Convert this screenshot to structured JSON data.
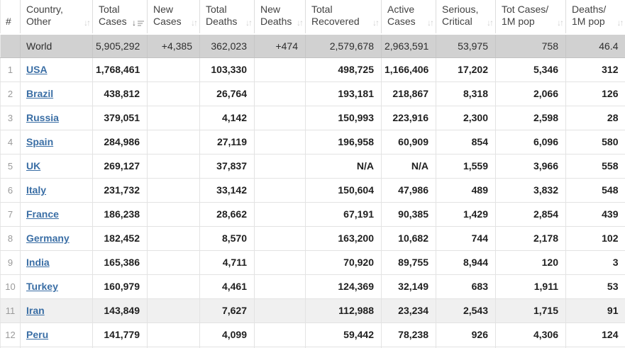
{
  "table": {
    "columns": [
      {
        "id": "rank",
        "line1": "#",
        "line2": "",
        "sortable": false,
        "sort": "none"
      },
      {
        "id": "country",
        "line1": "Country,",
        "line2": "Other",
        "sortable": true,
        "sort": "none"
      },
      {
        "id": "total_cases",
        "line1": "Total",
        "line2": "Cases",
        "sortable": true,
        "sort": "desc"
      },
      {
        "id": "new_cases",
        "line1": "New",
        "line2": "Cases",
        "sortable": true,
        "sort": "none"
      },
      {
        "id": "total_deaths",
        "line1": "Total",
        "line2": "Deaths",
        "sortable": true,
        "sort": "none"
      },
      {
        "id": "new_deaths",
        "line1": "New",
        "line2": "Deaths",
        "sortable": true,
        "sort": "none"
      },
      {
        "id": "total_recovered",
        "line1": "Total",
        "line2": "Recovered",
        "sortable": true,
        "sort": "none"
      },
      {
        "id": "active_cases",
        "line1": "Active",
        "line2": "Cases",
        "sortable": true,
        "sort": "none"
      },
      {
        "id": "serious_critical",
        "line1": "Serious,",
        "line2": "Critical",
        "sortable": true,
        "sort": "none"
      },
      {
        "id": "cases_per_1m",
        "line1": "Tot Cases/",
        "line2": "1M pop",
        "sortable": true,
        "sort": "none"
      },
      {
        "id": "deaths_per_1m",
        "line1": "Deaths/",
        "line2": "1M pop",
        "sortable": true,
        "sort": "none"
      }
    ],
    "world_row": {
      "country": "World",
      "total_cases": "5,905,292",
      "new_cases": "+4,385",
      "total_deaths": "362,023",
      "new_deaths": "+474",
      "total_recovered": "2,579,678",
      "active_cases": "2,963,591",
      "serious_critical": "53,975",
      "cases_per_1m": "758",
      "deaths_per_1m": "46.4"
    },
    "rows": [
      {
        "rank": "1",
        "country": "USA",
        "total_cases": "1,768,461",
        "new_cases": "",
        "total_deaths": "103,330",
        "new_deaths": "",
        "total_recovered": "498,725",
        "active_cases": "1,166,406",
        "serious_critical": "17,202",
        "cases_per_1m": "5,346",
        "deaths_per_1m": "312",
        "highlighted": false
      },
      {
        "rank": "2",
        "country": "Brazil",
        "total_cases": "438,812",
        "new_cases": "",
        "total_deaths": "26,764",
        "new_deaths": "",
        "total_recovered": "193,181",
        "active_cases": "218,867",
        "serious_critical": "8,318",
        "cases_per_1m": "2,066",
        "deaths_per_1m": "126",
        "highlighted": false
      },
      {
        "rank": "3",
        "country": "Russia",
        "total_cases": "379,051",
        "new_cases": "",
        "total_deaths": "4,142",
        "new_deaths": "",
        "total_recovered": "150,993",
        "active_cases": "223,916",
        "serious_critical": "2,300",
        "cases_per_1m": "2,598",
        "deaths_per_1m": "28",
        "highlighted": false
      },
      {
        "rank": "4",
        "country": "Spain",
        "total_cases": "284,986",
        "new_cases": "",
        "total_deaths": "27,119",
        "new_deaths": "",
        "total_recovered": "196,958",
        "active_cases": "60,909",
        "serious_critical": "854",
        "cases_per_1m": "6,096",
        "deaths_per_1m": "580",
        "highlighted": false
      },
      {
        "rank": "5",
        "country": "UK",
        "total_cases": "269,127",
        "new_cases": "",
        "total_deaths": "37,837",
        "new_deaths": "",
        "total_recovered": "N/A",
        "active_cases": "N/A",
        "serious_critical": "1,559",
        "cases_per_1m": "3,966",
        "deaths_per_1m": "558",
        "highlighted": false
      },
      {
        "rank": "6",
        "country": "Italy",
        "total_cases": "231,732",
        "new_cases": "",
        "total_deaths": "33,142",
        "new_deaths": "",
        "total_recovered": "150,604",
        "active_cases": "47,986",
        "serious_critical": "489",
        "cases_per_1m": "3,832",
        "deaths_per_1m": "548",
        "highlighted": false
      },
      {
        "rank": "7",
        "country": "France",
        "total_cases": "186,238",
        "new_cases": "",
        "total_deaths": "28,662",
        "new_deaths": "",
        "total_recovered": "67,191",
        "active_cases": "90,385",
        "serious_critical": "1,429",
        "cases_per_1m": "2,854",
        "deaths_per_1m": "439",
        "highlighted": false
      },
      {
        "rank": "8",
        "country": "Germany",
        "total_cases": "182,452",
        "new_cases": "",
        "total_deaths": "8,570",
        "new_deaths": "",
        "total_recovered": "163,200",
        "active_cases": "10,682",
        "serious_critical": "744",
        "cases_per_1m": "2,178",
        "deaths_per_1m": "102",
        "highlighted": false
      },
      {
        "rank": "9",
        "country": "India",
        "total_cases": "165,386",
        "new_cases": "",
        "total_deaths": "4,711",
        "new_deaths": "",
        "total_recovered": "70,920",
        "active_cases": "89,755",
        "serious_critical": "8,944",
        "cases_per_1m": "120",
        "deaths_per_1m": "3",
        "highlighted": false
      },
      {
        "rank": "10",
        "country": "Turkey",
        "total_cases": "160,979",
        "new_cases": "",
        "total_deaths": "4,461",
        "new_deaths": "",
        "total_recovered": "124,369",
        "active_cases": "32,149",
        "serious_critical": "683",
        "cases_per_1m": "1,911",
        "deaths_per_1m": "53",
        "highlighted": false
      },
      {
        "rank": "11",
        "country": "Iran",
        "total_cases": "143,849",
        "new_cases": "",
        "total_deaths": "7,627",
        "new_deaths": "",
        "total_recovered": "112,988",
        "active_cases": "23,234",
        "serious_critical": "2,543",
        "cases_per_1m": "1,715",
        "deaths_per_1m": "91",
        "highlighted": true
      },
      {
        "rank": "12",
        "country": "Peru",
        "total_cases": "141,779",
        "new_cases": "",
        "total_deaths": "4,099",
        "new_deaths": "",
        "total_recovered": "59,442",
        "active_cases": "78,238",
        "serious_critical": "926",
        "cases_per_1m": "4,306",
        "deaths_per_1m": "124",
        "highlighted": false
      }
    ],
    "colors": {
      "link_blue": "#3a6ea5",
      "world_row_bg": "#d1d1d1",
      "highlight_row_bg": "#f0f0f0",
      "header_text": "#424242",
      "sort_icon_inactive": "#cfcfcf",
      "sort_icon_active": "#5f5f5f",
      "grid_border": "#e3e3e3"
    }
  }
}
